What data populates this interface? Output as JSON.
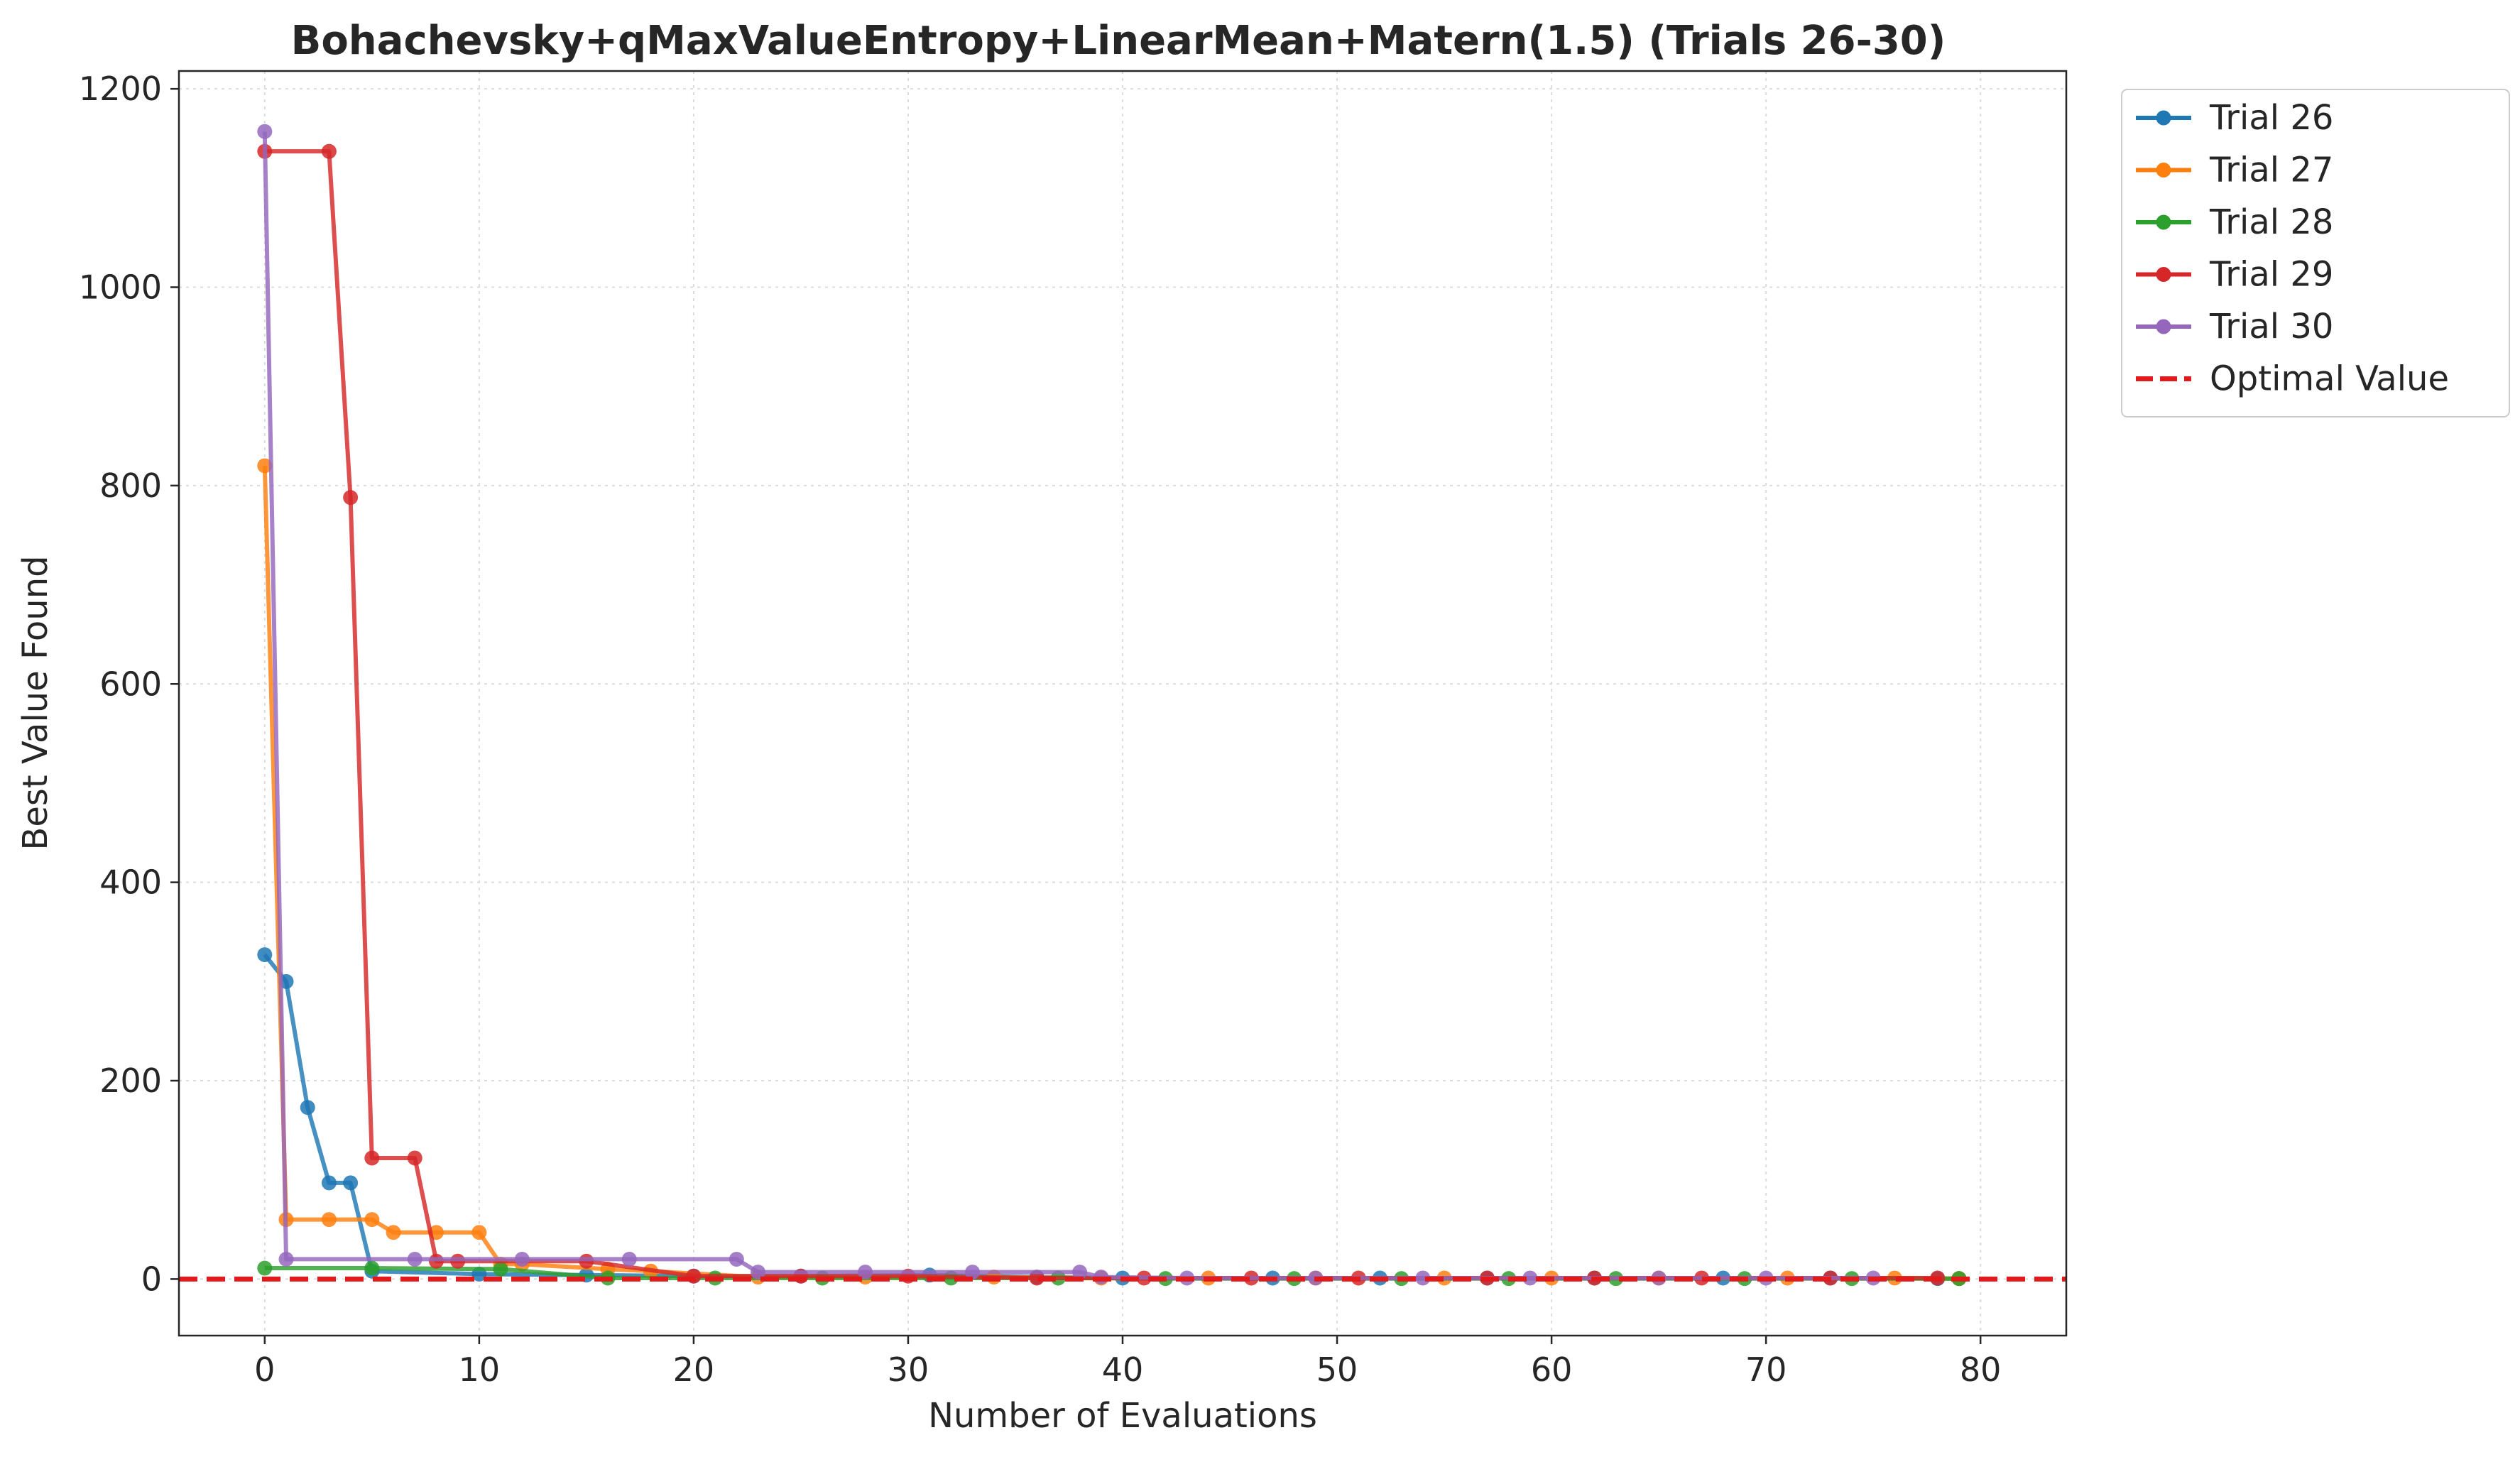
{
  "chart_data": {
    "type": "line",
    "title": "Bohachevsky+qMaxValueEntropy+LinearMean+Matern(1.5) (Trials 26-30)",
    "xlabel": "Number of Evaluations",
    "ylabel": "Best Value Found",
    "xlim": [
      -4,
      84
    ],
    "ylim": [
      -57,
      1218
    ],
    "xticks": [
      0,
      10,
      20,
      30,
      40,
      50,
      60,
      70,
      80
    ],
    "yticks": [
      0,
      200,
      400,
      600,
      800,
      1000,
      1200
    ],
    "grid": true,
    "legend_position": "outside upper right",
    "optimal_value": {
      "name": "Optimal Value",
      "y": 0,
      "color": "#e31a1c",
      "style": "dashed"
    },
    "series": [
      {
        "name": "Trial 26",
        "color": "#1f77b4",
        "x": [
          0,
          1,
          2,
          3,
          4,
          5,
          10,
          15,
          20,
          25,
          31,
          36,
          40,
          47,
          52,
          57,
          62,
          68,
          73,
          78,
          79
        ],
        "y": [
          327,
          300,
          173,
          97,
          97,
          8,
          5,
          4,
          3,
          3,
          4,
          2,
          1,
          1,
          1,
          1,
          1,
          1,
          1,
          0.5,
          0.5
        ]
      },
      {
        "name": "Trial 27",
        "color": "#ff7f0e",
        "x": [
          0,
          1,
          3,
          5,
          6,
          8,
          10,
          11,
          12,
          16,
          18,
          23,
          28,
          34,
          39,
          44,
          49,
          55,
          60,
          65,
          71,
          76,
          79
        ],
        "y": [
          820,
          60,
          60,
          60,
          47,
          47,
          47,
          15,
          15,
          10,
          8,
          2,
          2,
          2,
          1,
          1,
          1,
          1,
          1,
          1,
          1,
          1,
          0.5
        ]
      },
      {
        "name": "Trial 28",
        "color": "#2ca02c",
        "x": [
          0,
          5,
          11,
          16,
          21,
          26,
          32,
          37,
          42,
          48,
          53,
          58,
          63,
          69,
          74,
          79
        ],
        "y": [
          11,
          11,
          10,
          1,
          1,
          1,
          1,
          1,
          0.5,
          0.5,
          0.5,
          0.5,
          0.5,
          0.5,
          0.5,
          0.5
        ]
      },
      {
        "name": "Trial 29",
        "color": "#d62728",
        "x": [
          0,
          3,
          4,
          5,
          7,
          8,
          9,
          15,
          20,
          25,
          30,
          36,
          41,
          46,
          51,
          57,
          62,
          67,
          73,
          78
        ],
        "y": [
          1137,
          1137,
          788,
          122,
          122,
          18,
          18,
          18,
          3,
          3,
          3,
          1,
          1,
          1,
          1,
          1,
          1,
          1,
          1,
          1
        ]
      },
      {
        "name": "Trial 30",
        "color": "#9467bd",
        "x": [
          0,
          1,
          7,
          12,
          17,
          22,
          23,
          28,
          33,
          38,
          39,
          43,
          49,
          54,
          59,
          65,
          70,
          75
        ],
        "y": [
          1157,
          20,
          20,
          20,
          20,
          20,
          7,
          7,
          7,
          7,
          2,
          1,
          1,
          1,
          1,
          1,
          1,
          1
        ]
      }
    ]
  }
}
